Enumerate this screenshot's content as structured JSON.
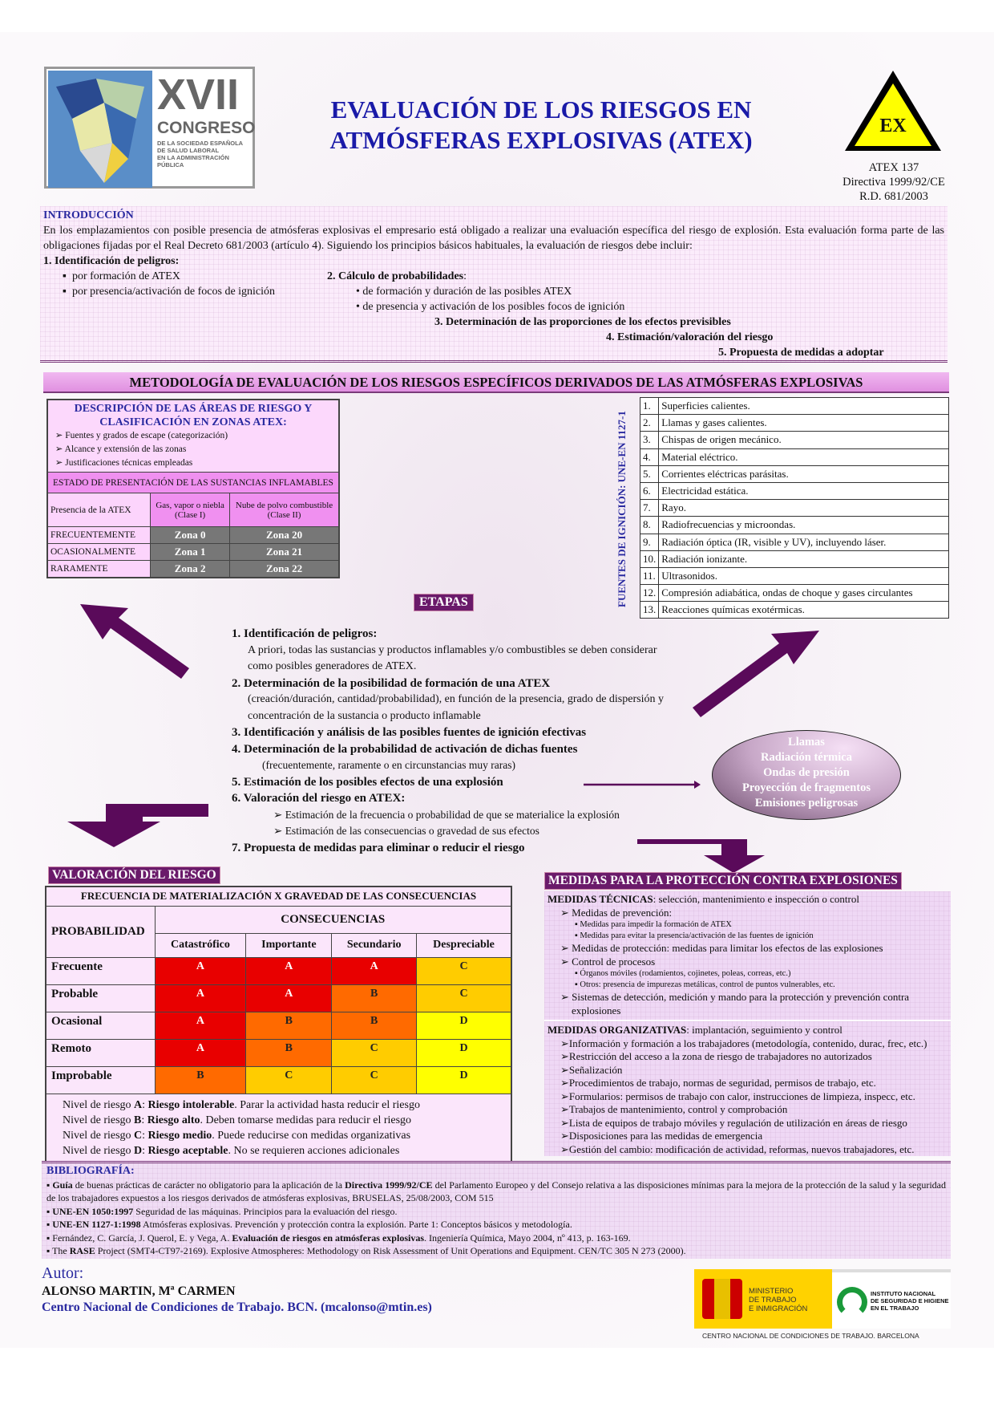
{
  "header": {
    "logo": {
      "text_large": "XVII",
      "text_medium": "CONGRESO",
      "text_small": [
        "DE LA SOCIEDAD ESPAÑOLA",
        "DE SALUD LABORAL",
        "EN LA ADMINISTRACIÓN PÚBLICA"
      ]
    },
    "title_line1": "EVALUACIÓN DE LOS RIESGOS EN",
    "title_line2": "ATMÓSFERAS  EXPLOSIVAS (ATEX)",
    "warning_sign": {
      "icon": "ex-warning-triangle-icon",
      "text": "EX",
      "fill": "#ffff00"
    },
    "refs": [
      "ATEX 137",
      "Directiva 1999/92/CE",
      "R.D. 681/2003"
    ]
  },
  "intro": {
    "heading": "INTRODUCCIÓN",
    "text": "En los emplazamientos con posible presencia de atmósferas explosivas el empresario está obligado a realizar una evaluación específica del riesgo de explosión. Esta evaluación forma parte de las obligaciones fijadas por el Real Decreto 681/2003 (artículo 4). Siguiendo los principios básicos habituales, la evaluación de riesgos debe incluir:",
    "item1": "1. Identificación de peligros:",
    "item1_bullets": [
      "por formación de ATEX",
      "por presencia/activación de focos de ignición"
    ],
    "item2": "2. Cálculo de probabilidades",
    "item2_bullets": [
      "de formación y duración de las posibles ATEX",
      "de presencia y activación de los posibles focos de ignición"
    ],
    "item3": "3. Determinación de las proporciones de los efectos previsibles",
    "item4": "4. Estimación/valoración del riesgo",
    "item5": "5. Propuesta de medidas a adoptar"
  },
  "methodology_title": "METODOLOGÍA DE EVALUACIÓN DE LOS RIESGOS ESPECÍFICOS DERIVADOS DE LAS ATMÓSFERAS EXPLOSIVAS",
  "zones": {
    "heading": "DESCRIPCIÓN DE LAS ÁREAS DE RIESGO Y CLASIFICACIÓN EN ZONAS ATEX:",
    "bullets": [
      "Fuentes y grados de escape (categorización)",
      "Alcance y extensión de las zonas",
      "Justificaciones técnicas empleadas"
    ],
    "state_header": "ESTADO DE PRESENTACIÓN DE LAS SUSTANCIAS INFLAMABLES",
    "col0": "Presencia de la ATEX",
    "col1": "Gas, vapor o niebla (Clase I)",
    "col2": "Nube de polvo combustible (Clase II)",
    "rows": [
      [
        "FRECUENTEMENTE",
        "Zona 0",
        "Zona 20"
      ],
      [
        "OCASIONALMENTE",
        "Zona 1",
        "Zona 21"
      ],
      [
        "RARAMENTE",
        "Zona 2",
        "Zona 22"
      ]
    ]
  },
  "ignition": {
    "label": "FUENTES DE IGNICIÓN: UNE-EN 1127-1",
    "items": [
      [
        "1.",
        "Superficies calientes."
      ],
      [
        "2.",
        "Llamas y gases calientes."
      ],
      [
        "3.",
        "Chispas de origen mecánico."
      ],
      [
        "4.",
        "Material eléctrico."
      ],
      [
        "5.",
        "Corrientes eléctricas parásitas."
      ],
      [
        "6.",
        "Electricidad estática."
      ],
      [
        "7.",
        "Rayo."
      ],
      [
        "8.",
        "Radiofrecuencias y microondas."
      ],
      [
        "9.",
        "Radiación óptica (IR, visible y UV), incluyendo láser."
      ],
      [
        "10.",
        "Radiación ionizante."
      ],
      [
        "11.",
        "Ultrasonidos."
      ],
      [
        "12.",
        "Compresión adiabática, ondas de choque y gases circulantes"
      ],
      [
        "13.",
        "Reacciones químicas exotérmicas."
      ]
    ]
  },
  "etapas": {
    "label": "ETAPAS",
    "s1": "1. Identificación de peligros:",
    "s1_text": "A priori, todas las sustancias y productos inflamables y/o combustibles se deben considerar como posibles generadores de ATEX.",
    "s2": "2. Determinación de la posibilidad de formación de una ATEX",
    "s2_text": "(creación/duración, cantidad/probabilidad), en función de la presencia, grado de dispersión y concentración de la sustancia o producto inflamable",
    "s3": "3. Identificación y análisis de las posibles fuentes de ignición efectivas",
    "s4": "4. Determinación de la probabilidad de activación de dichas fuentes",
    "s4_text": "(frecuentemente, raramente o en circunstancias muy raras)",
    "s5": "5. Estimación de los posibles efectos de una explosión",
    "s6": "6. Valoración del riesgo en ATEX:",
    "s6_bullets": [
      "Estimación de la frecuencia o probabilidad de que se materialice la explosión",
      "Estimación de las consecuencias o gravedad de sus efectos"
    ],
    "s7": "7. Propuesta de medidas para eliminar o reducir el riesgo"
  },
  "effects": [
    "Llamas",
    "Radiación térmica",
    "Ondas de presión",
    "Proyección de fragmentos",
    "Emisiones peligrosas"
  ],
  "risk": {
    "label": "VALORACIÓN DEL RIESGO",
    "header": "FRECUENCIA DE MATERIALIZACIÓN X GRAVEDAD DE LAS CONSECUENCIAS",
    "prob_label": "PROBABILIDAD",
    "cons_label": "CONSECUENCIAS",
    "columns": [
      "Catastrófico",
      "Importante",
      "Secundario",
      "Despreciable"
    ],
    "rows": [
      [
        "Frecuente",
        "A",
        "A",
        "A",
        "C"
      ],
      [
        "Probable",
        "A",
        "A",
        "B",
        "C"
      ],
      [
        "Ocasional",
        "A",
        "B",
        "B",
        "D"
      ],
      [
        "Remoto",
        "A",
        "B",
        "C",
        "D"
      ],
      [
        "Improbable",
        "B",
        "C",
        "C",
        "D"
      ]
    ],
    "colors": {
      "A": "#e80000",
      "B": "#ff6a00",
      "C": "#ffcc00",
      "D": "#ffff00"
    },
    "legend": [
      [
        "Nivel de riesgo ",
        "A",
        ": ",
        "Riesgo intolerable",
        ". Parar la actividad hasta reducir el riesgo"
      ],
      [
        "Nivel de riesgo ",
        "B",
        ": ",
        "Riesgo alto",
        ". Deben tomarse medidas para reducir el riesgo"
      ],
      [
        "Nivel de riesgo ",
        "C",
        ": ",
        "Riesgo medio",
        ". Puede reducirse con medidas organizativas"
      ],
      [
        "Nivel de riesgo ",
        "D",
        ": ",
        "Riesgo aceptable",
        ". No se requieren acciones adicionales"
      ]
    ]
  },
  "medidas": {
    "label": "MEDIDAS PARA LA PROTECCIÓN CONTRA EXPLOSIONES",
    "tec_title": "MEDIDAS TÉCNICAS",
    "tec_sub": ": selección, mantenimiento e inspección o control",
    "prev": "Medidas de prevención:",
    "prev_items": [
      "Medidas para impedir la formación de ATEX",
      "Medidas para evitar la presencia/activación de las fuentes de ignición"
    ],
    "prot": "Medidas de protección: medidas para limitar los efectos de las explosiones",
    "ctrl": "Control de procesos",
    "ctrl_items": [
      "Órganos móviles (rodamientos, cojinetes, poleas, correas, etc.)",
      "Otros: presencia de impurezas metálicas, control de puntos vulnerables, etc."
    ],
    "sist": "Sistemas de detección, medición y mando para la protección y prevención contra explosiones",
    "org_title": "MEDIDAS ORGANIZATIVAS",
    "org_sub": ": implantación, seguimiento y control",
    "org_items": [
      "Información y formación a los trabajadores (metodología, contenido, durac, frec, etc.)",
      "Restricción del acceso a la zona de riesgo de  trabajadores no autorizados",
      "Señalización",
      "Procedimientos de trabajo,  normas de seguridad, permisos de trabajo, etc.",
      "Formularios: permisos de trabajo con calor, instrucciones de limpieza, inspecc, etc.",
      "Trabajos de mantenimiento, control y comprobación",
      "Lista de equipos de trabajo móviles y regulación de utilización en áreas de riesgo",
      "Disposiciones para las medidas de emergencia",
      "Gestión del cambio: modificación de actividad, reformas, nuevos trabajadores, etc."
    ]
  },
  "bibliography": {
    "heading": "BIBLIOGRAFÍA:",
    "items": [
      [
        "Guía",
        " de buenas prácticas de carácter no obligatorio para la aplicación de la ",
        "Directiva 1999/92/CE",
        " del Parlamento Europeo y del Consejo relativa a las disposiciones mínimas para la mejora de la protección de la salud y la seguridad de los trabajadores expuestos a los riesgos derivados de atmósferas explosivas, BRUSELAS, 25/08/2003, COM 515"
      ],
      [
        "UNE-EN 1050:1997",
        " Seguridad de las máquinas. Principios para la evaluación del riesgo.",
        "",
        ""
      ],
      [
        "UNE-EN 1127-1:1998",
        "  Atmósferas explosivas. Prevención y protección contra la explosión. Parte 1: Conceptos básicos y metodología.",
        "",
        ""
      ],
      [
        "",
        "Fernández, C. García, J. Querol, E. y Vega, A. ",
        "Evaluación de riesgos en atmósferas explosivas",
        ". Ingeniería Química, Mayo 2004, nº 413, p. 163-169."
      ],
      [
        "",
        "The ",
        "RASE",
        " Project (SMT4-CT97-2169). Explosive Atmospheres: Methodology on Risk Assessment of Unit Operations and Equipment. CEN/TC 305 N 273 (2000)."
      ]
    ]
  },
  "author": {
    "label": "Autor:",
    "name": "ALONSO MARTIN, Mª CARMEN",
    "org": "Centro Nacional de Condiciones de Trabajo. BCN. (mcalonso@mtin.es)"
  },
  "logos": {
    "ministry": [
      "MINISTERIO",
      "DE TRABAJO",
      "E INMIGRACIÓN"
    ],
    "insht": [
      "INSTITUTO NACIONAL",
      "DE SEGURIDAD E HIGIENE",
      "EN EL TRABAJO"
    ],
    "footer": "CENTRO NACIONAL DE CONDICIONES DE TRABAJO. BARCELONA"
  },
  "accent": "#6a1a6a"
}
